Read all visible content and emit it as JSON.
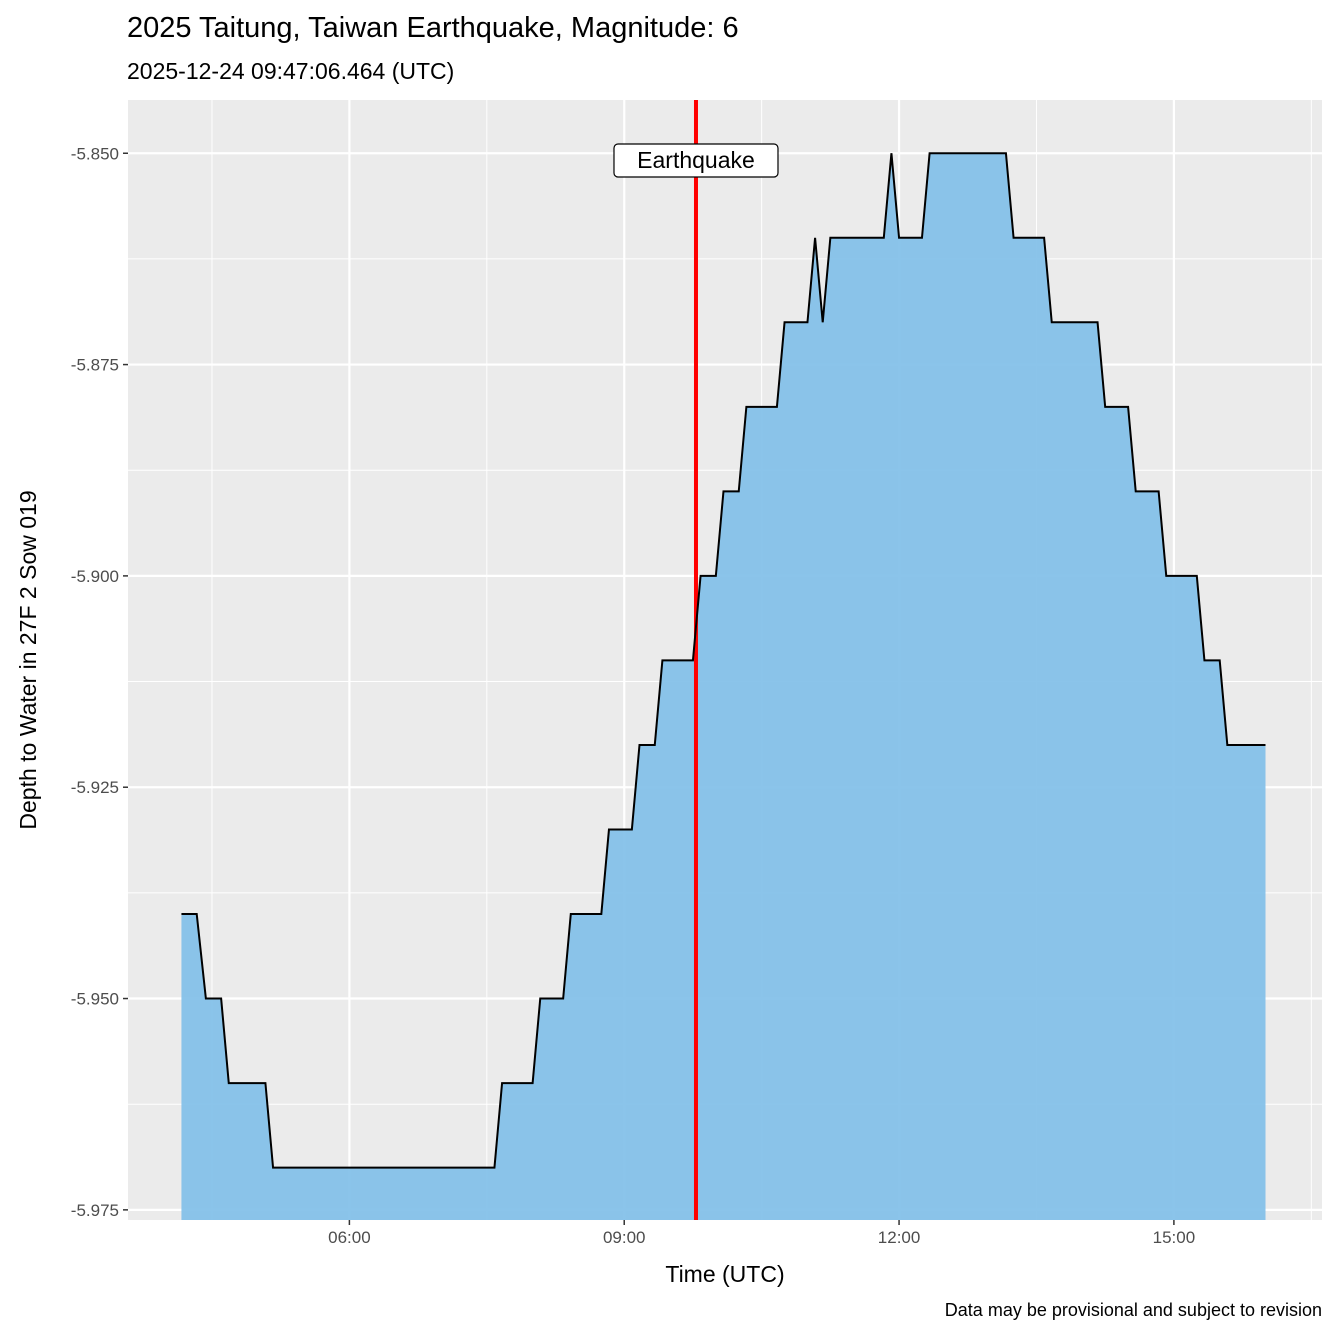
{
  "chart_data": {
    "type": "area",
    "title": "2025 Taitung, Taiwan Earthquake, Magnitude: 6",
    "subtitle": "2025-12-24 09:47:06.464 (UTC)",
    "xlabel": "Time (UTC)",
    "ylabel": "Depth to Water in 27F 2 Sow 019",
    "caption": "Data may be provisional and subject to revision",
    "x_ticks": [
      "06:00",
      "09:00",
      "12:00",
      "15:00"
    ],
    "y_ticks": [
      "-5.850",
      "-5.875",
      "-5.900",
      "-5.925",
      "-5.950",
      "-5.975"
    ],
    "xlim": [
      "03:35",
      "16:37"
    ],
    "ylim": [
      -5.9762,
      -5.8437
    ],
    "grid": true,
    "fill_color": "#85C1E9",
    "line_color": "#000000",
    "annotation": {
      "label": "Earthquake",
      "time": "09:47",
      "color": "#FF0000"
    },
    "series": [
      {
        "x": [
          "04:10",
          "04:20",
          "04:26",
          "04:36",
          "04:41",
          "05:05",
          "05:10",
          "07:35",
          "07:40",
          "08:00",
          "08:05",
          "08:20",
          "08:25",
          "08:45",
          "08:50",
          "09:05",
          "09:10",
          "09:20",
          "09:25",
          "09:45",
          "09:50",
          "10:00",
          "10:05",
          "10:15",
          "10:20",
          "10:40",
          "10:45",
          "11:00",
          "11:05",
          "11:10",
          "11:15",
          "11:50",
          "11:55",
          "12:00",
          "12:15",
          "12:20",
          "13:10",
          "13:15",
          "13:35",
          "13:40",
          "14:10",
          "14:15",
          "14:30",
          "14:35",
          "14:50",
          "14:55",
          "15:15",
          "15:20",
          "15:30",
          "15:35",
          "16:00"
        ],
        "y": [
          -5.94,
          -5.94,
          -5.95,
          -5.95,
          -5.96,
          -5.96,
          -5.97,
          -5.97,
          -5.96,
          -5.96,
          -5.95,
          -5.95,
          -5.94,
          -5.94,
          -5.93,
          -5.93,
          -5.92,
          -5.92,
          -5.91,
          -5.91,
          -5.9,
          -5.9,
          -5.89,
          -5.89,
          -5.88,
          -5.88,
          -5.87,
          -5.87,
          -5.86,
          -5.87,
          -5.86,
          -5.86,
          -5.85,
          -5.86,
          -5.86,
          -5.85,
          -5.85,
          -5.86,
          -5.86,
          -5.87,
          -5.87,
          -5.88,
          -5.88,
          -5.89,
          -5.89,
          -5.9,
          -5.9,
          -5.91,
          -5.91,
          -5.92,
          -5.92
        ]
      }
    ]
  }
}
